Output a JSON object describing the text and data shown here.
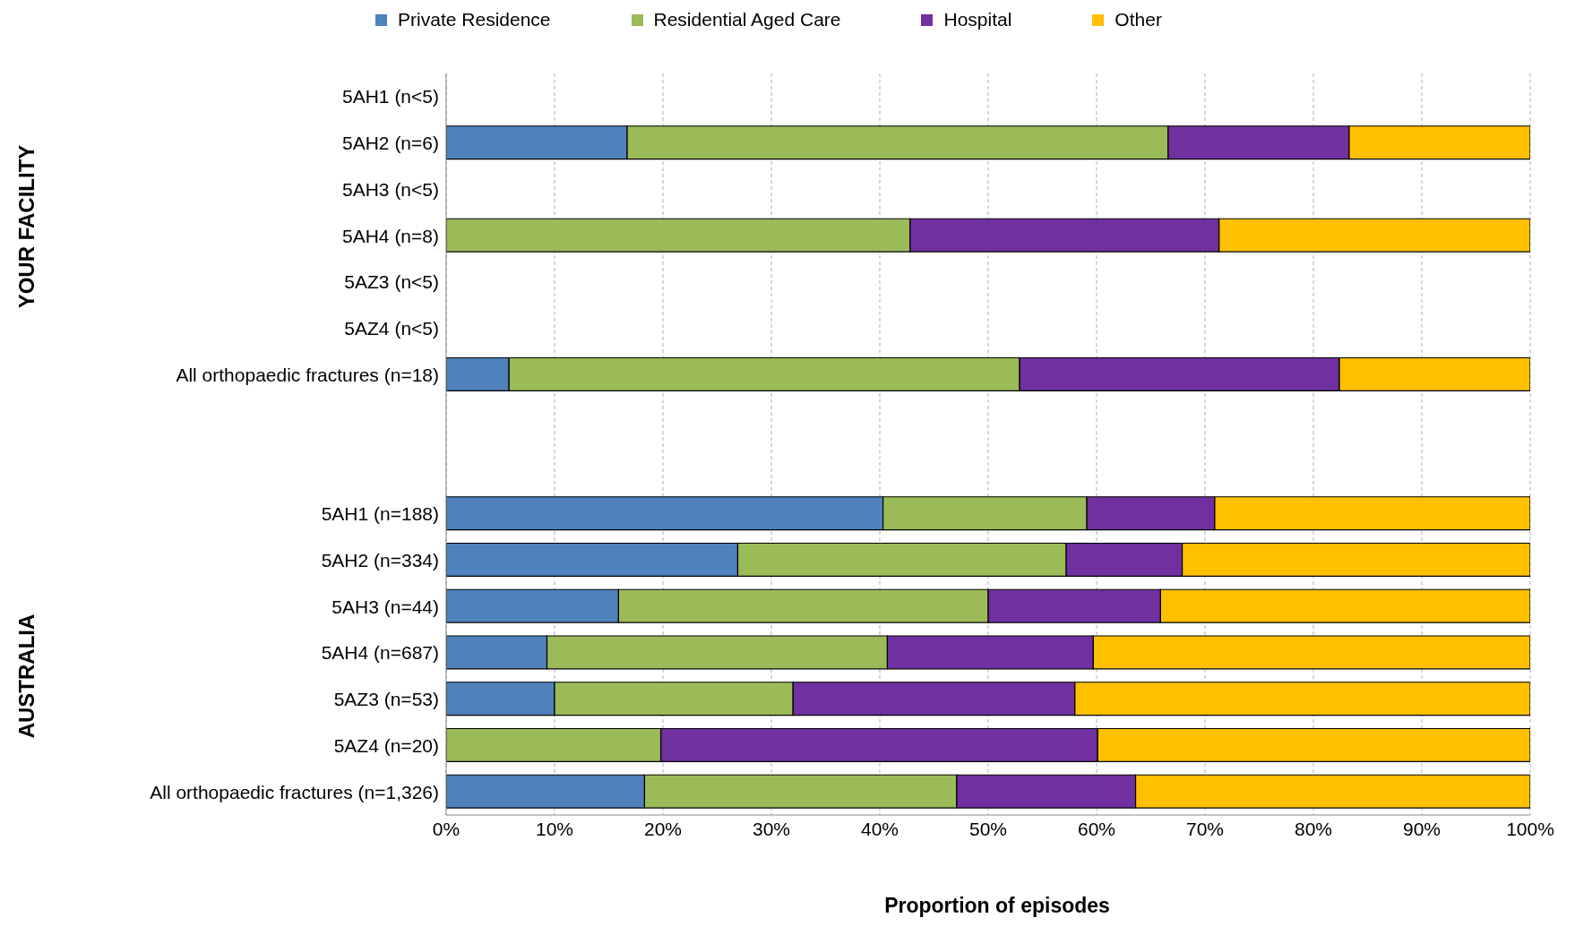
{
  "chart_data": {
    "type": "bar",
    "orientation": "horizontal",
    "stacked": true,
    "xlabel": "Proportion of episodes",
    "categories": [
      "5AH1 (n<5)",
      "5AH2 (n=6)",
      "5AH3 (n<5)",
      "5AH4 (n=8)",
      "5AZ3 (n<5)",
      "5AZ4 (n<5)",
      "All orthopaedic fractures (n=18)",
      null,
      null,
      "5AH1 (n=188)",
      "5AH2 (n=334)",
      "5AH3 (n=44)",
      "5AH4 (n=687)",
      "5AZ3 (n=53)",
      "5AZ4 (n=20)",
      "All orthopaedic fractures (n=1,326)"
    ],
    "series": [
      {
        "name": "Private Residence",
        "color": "#4f81bd",
        "values": [
          null,
          16.7,
          null,
          0,
          null,
          null,
          5.8,
          null,
          null,
          40.3,
          26.9,
          15.9,
          9.3,
          10.0,
          0,
          18.3
        ]
      },
      {
        "name": "Residential Aged Care",
        "color": "#9bbb59",
        "values": [
          null,
          49.9,
          null,
          42.8,
          null,
          null,
          47.1,
          null,
          null,
          18.8,
          30.3,
          34.1,
          31.4,
          22.0,
          19.8,
          28.8
        ]
      },
      {
        "name": "Hospital",
        "color": "#7030a0",
        "values": [
          null,
          16.7,
          null,
          28.5,
          null,
          null,
          29.5,
          null,
          null,
          11.8,
          10.7,
          15.9,
          19.0,
          26.0,
          40.3,
          16.5
        ]
      },
      {
        "name": "Other",
        "color": "#ffc000",
        "values": [
          null,
          16.7,
          null,
          28.7,
          null,
          null,
          17.6,
          null,
          null,
          29.1,
          32.1,
          34.1,
          40.3,
          42.0,
          39.9,
          36.4
        ]
      }
    ],
    "xlim": [
      0,
      100
    ],
    "xticks": [
      {
        "value": 0,
        "label": "0%"
      },
      {
        "value": 10,
        "label": "10%"
      },
      {
        "value": 20,
        "label": "20%"
      },
      {
        "value": 30,
        "label": "30%"
      },
      {
        "value": 40,
        "label": "40%"
      },
      {
        "value": 50,
        "label": "50%"
      },
      {
        "value": 60,
        "label": "60%"
      },
      {
        "value": 70,
        "label": "70%"
      },
      {
        "value": 80,
        "label": "80%"
      },
      {
        "value": 90,
        "label": "90%"
      },
      {
        "value": 100,
        "label": "100%"
      }
    ],
    "grid": "x",
    "legend": "top",
    "annotations": [
      "YOUR FACILITY",
      "AUSTRALIA"
    ]
  }
}
